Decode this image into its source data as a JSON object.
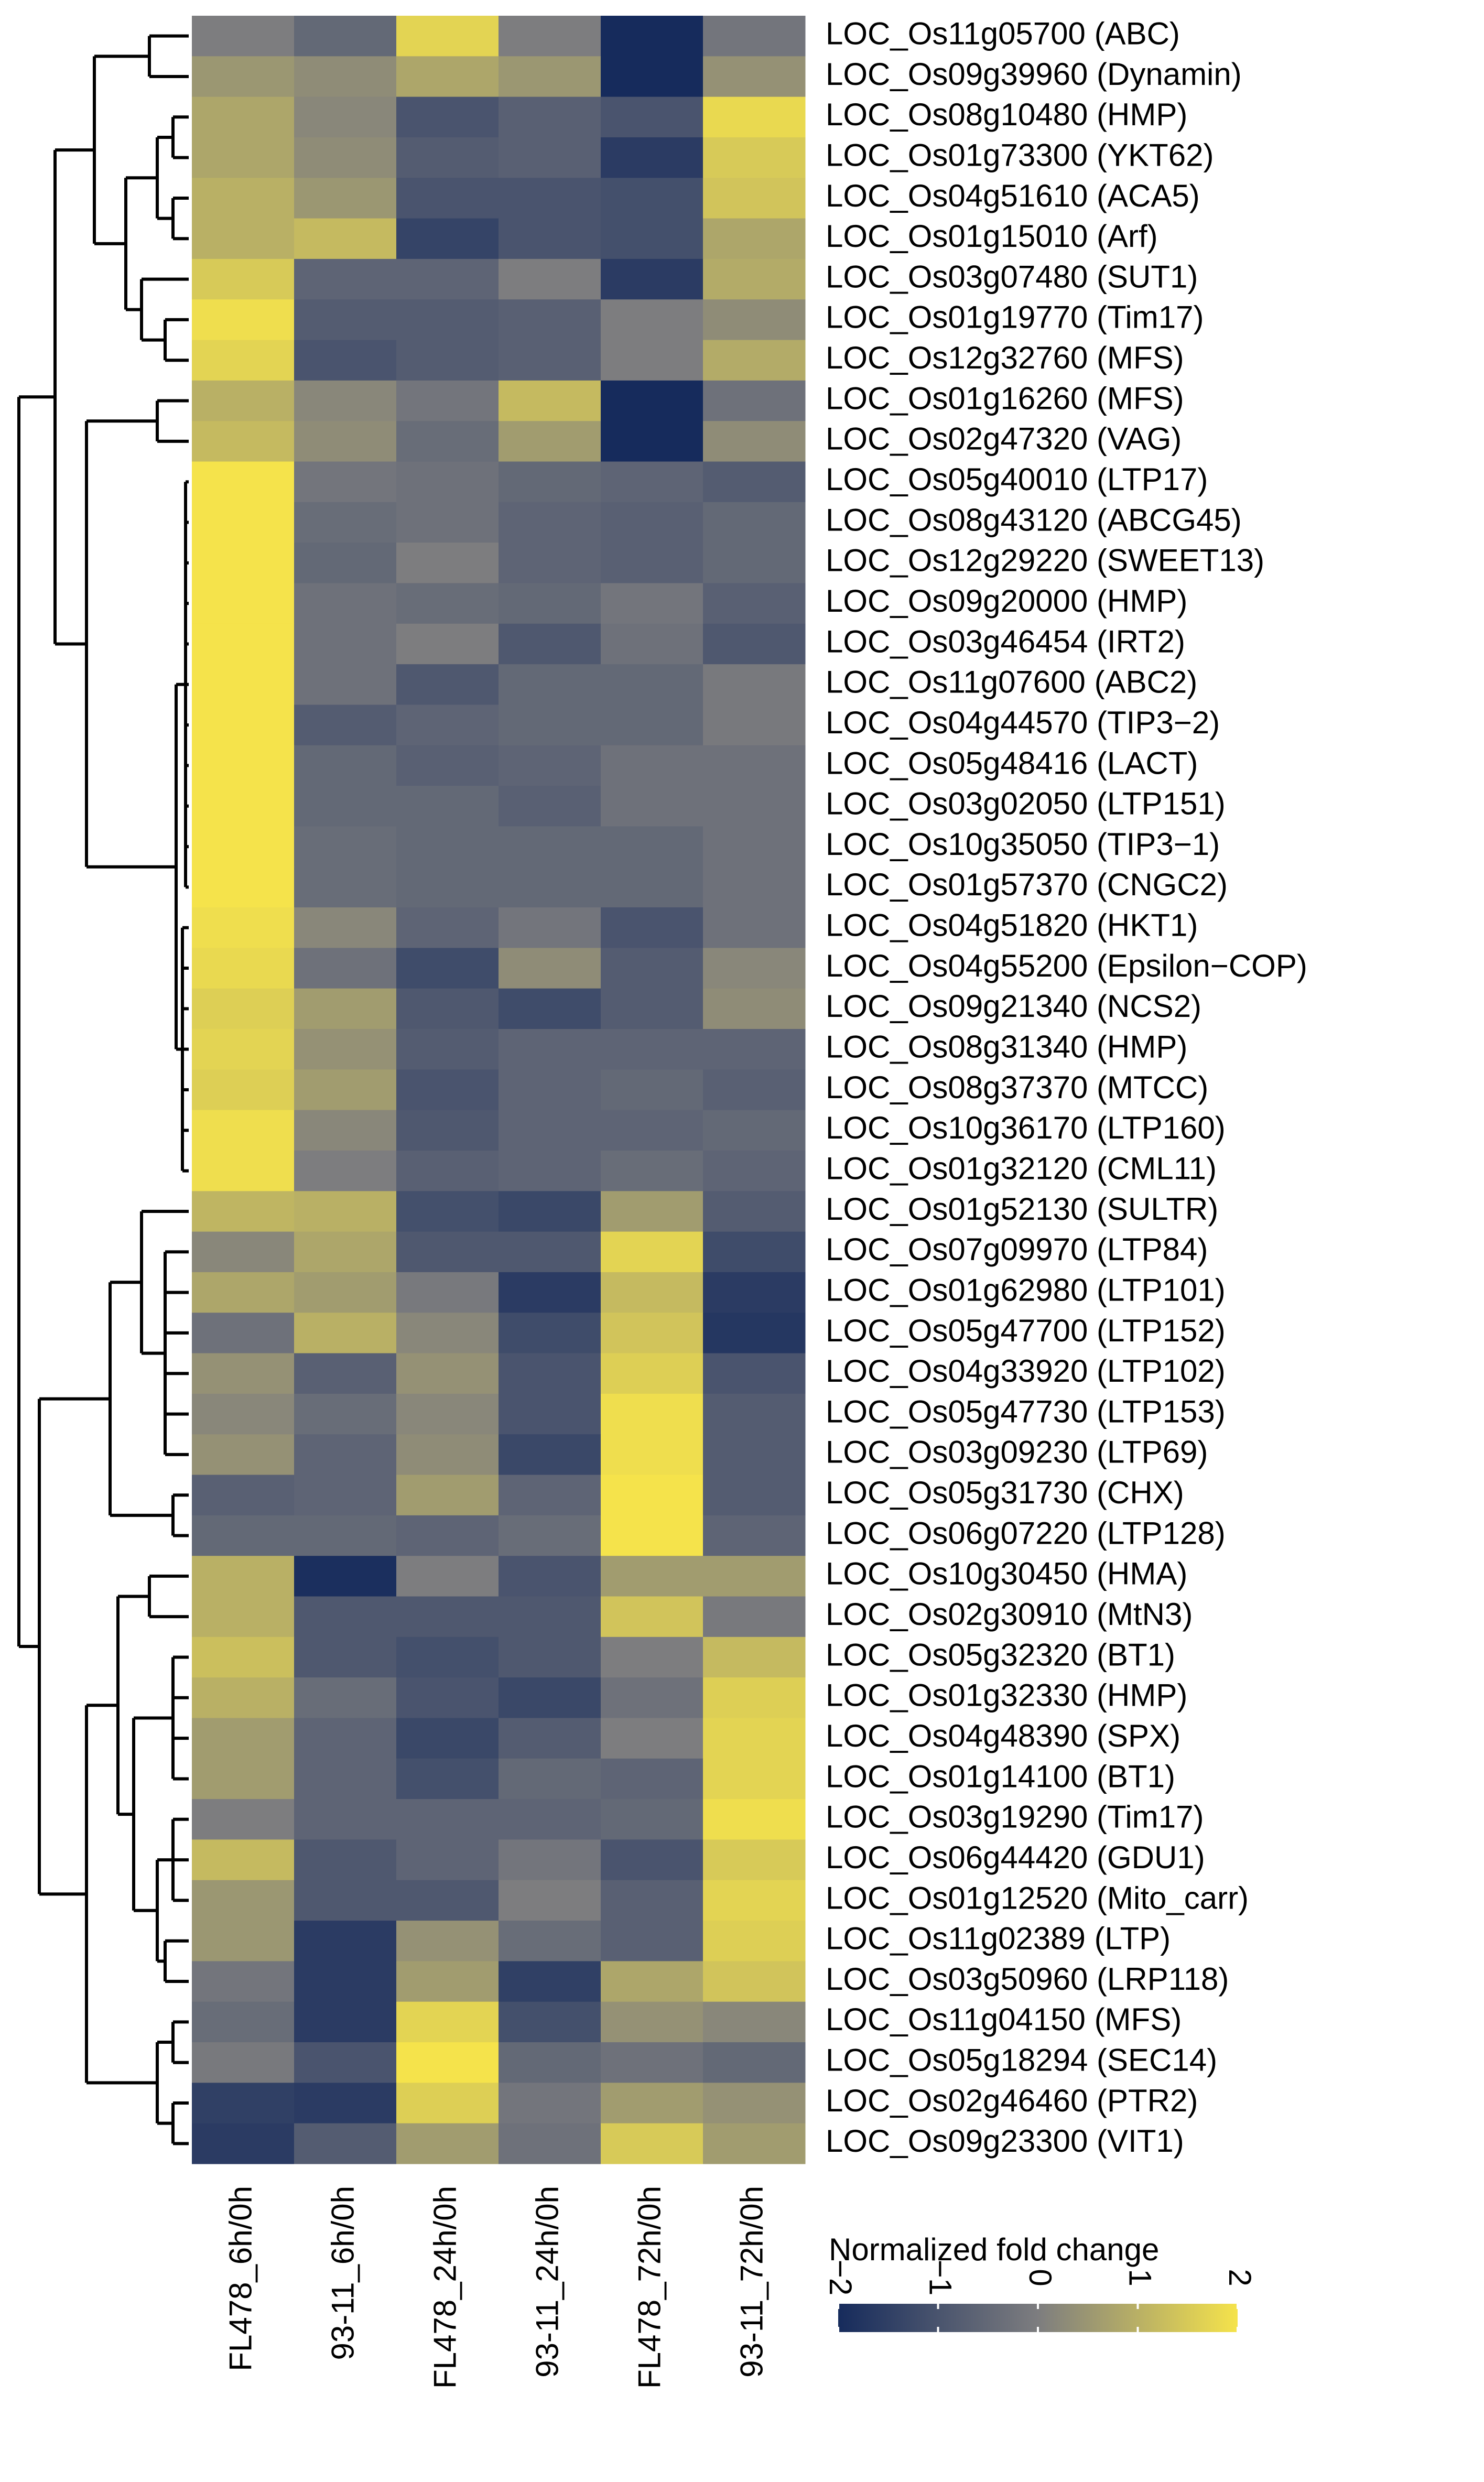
{
  "chart_data": {
    "type": "heatmap",
    "rows": [
      "LOC_Os11g05700 (ABC)",
      "LOC_Os09g39960 (Dynamin)",
      "LOC_Os08g10480 (HMP)",
      "LOC_Os01g73300 (YKT62)",
      "LOC_Os04g51610 (ACA5)",
      "LOC_Os01g15010 (Arf)",
      "LOC_Os03g07480 (SUT1)",
      "LOC_Os01g19770 (Tim17)",
      "LOC_Os12g32760 (MFS)",
      "LOC_Os01g16260 (MFS)",
      "LOC_Os02g47320 (VAG)",
      "LOC_Os05g40010 (LTP17)",
      "LOC_Os08g43120 (ABCG45)",
      "LOC_Os12g29220 (SWEET13)",
      "LOC_Os09g20000 (HMP)",
      "LOC_Os03g46454 (IRT2)",
      "LOC_Os11g07600 (ABC2)",
      "LOC_Os04g44570 (TIP3−2)",
      "LOC_Os05g48416 (LACT)",
      "LOC_Os03g02050 (LTP151)",
      "LOC_Os10g35050 (TIP3−1)",
      "LOC_Os01g57370 (CNGC2)",
      "LOC_Os04g51820 (HKT1)",
      "LOC_Os04g55200 (Epsilon−COP)",
      "LOC_Os09g21340 (NCS2)",
      "LOC_Os08g31340 (HMP)",
      "LOC_Os08g37370 (MTCC)",
      "LOC_Os10g36170 (LTP160)",
      "LOC_Os01g32120 (CML11)",
      "LOC_Os01g52130 (SULTR)",
      "LOC_Os07g09970 (LTP84)",
      "LOC_Os01g62980 (LTP101)",
      "LOC_Os05g47700 (LTP152)",
      "LOC_Os04g33920 (LTP102)",
      "LOC_Os05g47730 (LTP153)",
      "LOC_Os03g09230 (LTP69)",
      "LOC_Os05g31730 (CHX)",
      "LOC_Os06g07220 (LTP128)",
      "LOC_Os10g30450 (HMA)",
      "LOC_Os02g30910 (MtN3)",
      "LOC_Os05g32320 (BT1)",
      "LOC_Os01g32330 (HMP)",
      "LOC_Os04g48390 (SPX)",
      "LOC_Os01g14100 (BT1)",
      "LOC_Os03g19290 (Tim17)",
      "LOC_Os06g44420 (GDU1)",
      "LOC_Os01g12520 (Mito_carr)",
      "LOC_Os11g02389 (LTP)",
      "LOC_Os03g50960 (LRP118)",
      "LOC_Os11g04150 (MFS)",
      "LOC_Os05g18294 (SEC14)",
      "LOC_Os02g46460 (PTR2)",
      "LOC_Os09g23300 (VIT1)"
    ],
    "columns": [
      "FL478_6h/0h",
      "93-11_6h/0h",
      "FL478_24h/0h",
      "93-11_24h/0h",
      "FL478_72h/0h",
      "93-11_72h/0h"
    ],
    "values": [
      [
        0,
        -0.5,
        1.7,
        0,
        -2,
        -0.2
      ],
      [
        0.5,
        0.3,
        0.8,
        0.5,
        -2,
        0.4
      ],
      [
        0.8,
        0.2,
        -1,
        -0.7,
        -1,
        1.8
      ],
      [
        0.8,
        0.3,
        -0.8,
        -0.7,
        -1.6,
        1.5
      ],
      [
        1,
        0.5,
        -1,
        -1,
        -1.1,
        1.4
      ],
      [
        1,
        1.2,
        -1.4,
        -1,
        -1.1,
        0.8
      ],
      [
        1.5,
        -0.6,
        -0.6,
        0,
        -1.6,
        0.9
      ],
      [
        1.9,
        -0.8,
        -0.8,
        -0.7,
        0,
        0.3
      ],
      [
        1.7,
        -1,
        -0.8,
        -0.7,
        0,
        0.9
      ],
      [
        1,
        0.2,
        -0.2,
        1.2,
        -2,
        -0.3
      ],
      [
        1.2,
        0.3,
        -0.4,
        0.6,
        -2,
        0.3
      ],
      [
        2,
        -0.2,
        -0.3,
        -0.5,
        -0.6,
        -0.8
      ],
      [
        2,
        -0.4,
        -0.3,
        -0.6,
        -0.7,
        -0.5
      ],
      [
        2,
        -0.5,
        0,
        -0.6,
        -0.7,
        -0.5
      ],
      [
        2,
        -0.3,
        -0.4,
        -0.5,
        -0.2,
        -0.7
      ],
      [
        2,
        -0.3,
        0,
        -0.9,
        -0.3,
        -0.9
      ],
      [
        2,
        -0.3,
        -0.9,
        -0.5,
        -0.5,
        -0.1
      ],
      [
        2,
        -0.8,
        -0.6,
        -0.5,
        -0.5,
        -0.1
      ],
      [
        2,
        -0.5,
        -0.7,
        -0.6,
        -0.3,
        -0.3
      ],
      [
        2,
        -0.5,
        -0.5,
        -0.7,
        -0.3,
        -0.3
      ],
      [
        2,
        -0.4,
        -0.5,
        -0.5,
        -0.5,
        -0.3
      ],
      [
        2,
        -0.4,
        -0.5,
        -0.5,
        -0.5,
        -0.3
      ],
      [
        1.9,
        0.2,
        -0.6,
        -0.2,
        -1,
        -0.3
      ],
      [
        1.8,
        -0.3,
        -1.2,
        0.3,
        -0.8,
        0.2
      ],
      [
        1.6,
        0.6,
        -0.9,
        -1.2,
        -0.8,
        0.3
      ],
      [
        1.7,
        0.4,
        -0.8,
        -0.6,
        -0.6,
        -0.6
      ],
      [
        1.6,
        0.6,
        -1,
        -0.6,
        -0.5,
        -0.7
      ],
      [
        1.9,
        0.2,
        -0.9,
        -0.6,
        -0.6,
        -0.5
      ],
      [
        1.9,
        0,
        -0.7,
        -0.6,
        -0.4,
        -0.6
      ],
      [
        1.1,
        1,
        -1.1,
        -1.3,
        0.6,
        -0.8
      ],
      [
        0.2,
        0.8,
        -0.9,
        -0.9,
        1.7,
        -1.2
      ],
      [
        0.8,
        0.6,
        -0.1,
        -1.6,
        1.2,
        -1.6
      ],
      [
        -0.3,
        1,
        0.2,
        -1.2,
        1.4,
        -1.7
      ],
      [
        0.4,
        -0.7,
        0.4,
        -1,
        1.6,
        -1
      ],
      [
        0.2,
        -0.4,
        0.2,
        -1,
        1.9,
        -0.8
      ],
      [
        0.4,
        -0.6,
        0.3,
        -1.3,
        1.9,
        -0.8
      ],
      [
        -0.7,
        -0.6,
        0.6,
        -0.6,
        2,
        -0.8
      ],
      [
        -0.5,
        -0.5,
        -0.6,
        -0.4,
        2,
        -0.6
      ],
      [
        1,
        -1.9,
        0,
        -1,
        0.6,
        0.6
      ],
      [
        1,
        -0.9,
        -0.9,
        -0.9,
        1.4,
        -0.1
      ],
      [
        1.3,
        -0.9,
        -1.1,
        -0.9,
        0,
        1.2
      ],
      [
        1,
        -0.4,
        -1,
        -1.3,
        -0.3,
        1.6
      ],
      [
        0.6,
        -0.6,
        -1.3,
        -0.8,
        0,
        1.7
      ],
      [
        0.6,
        -0.6,
        -1.1,
        -0.5,
        -0.6,
        1.7
      ],
      [
        0,
        -0.6,
        -0.6,
        -0.6,
        -0.5,
        1.9
      ],
      [
        1.2,
        -0.9,
        -0.6,
        -0.2,
        -1,
        1.5
      ],
      [
        0.5,
        -0.9,
        -0.9,
        0,
        -0.7,
        1.7
      ],
      [
        0.5,
        -1.6,
        0.4,
        -0.4,
        -0.7,
        1.6
      ],
      [
        -0.2,
        -1.6,
        0.6,
        -1.5,
        0.8,
        1.4
      ],
      [
        -0.4,
        -1.6,
        1.7,
        -1.1,
        0.4,
        0.2
      ],
      [
        -0.1,
        -1,
        2,
        -0.5,
        -0.3,
        -0.5
      ],
      [
        -1.5,
        -1.6,
        1.6,
        -0.2,
        0.6,
        0.4
      ],
      [
        -1.6,
        -0.8,
        0.6,
        -0.3,
        1.5,
        0.6
      ]
    ],
    "colors": [
      "#162b5c",
      "#7d7d7f",
      "#f5e34b"
    ],
    "colorbar": {
      "title": "Normalized fold change",
      "lim": [
        -2,
        2
      ],
      "ticks": [
        {
          "value": -2,
          "label": "−2"
        },
        {
          "value": -1,
          "label": "−1"
        },
        0,
        1,
        2
      ]
    }
  }
}
